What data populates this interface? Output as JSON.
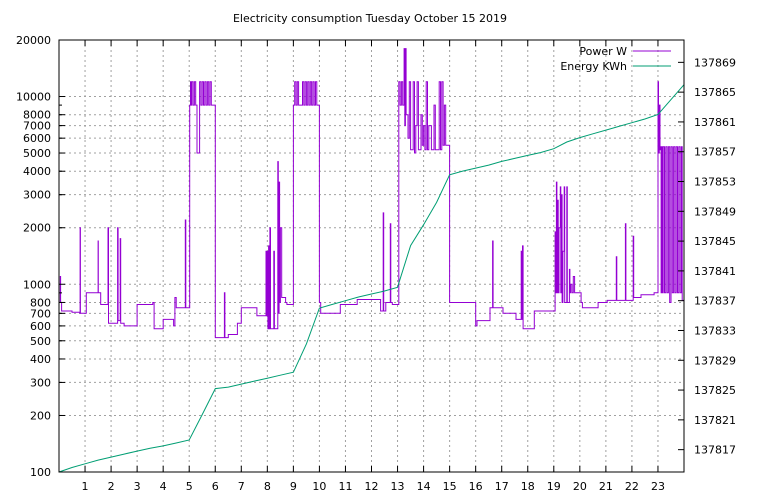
{
  "chart_data": {
    "type": "line",
    "title": "Electricity consumption Tuesday October 15 2019",
    "xlabel": "",
    "ylabel": "",
    "y2label": "",
    "x_range": [
      0,
      24
    ],
    "x_ticks": [
      "1",
      "2",
      "3",
      "4",
      "5",
      "6",
      "7",
      "8",
      "9",
      "10",
      "11",
      "12",
      "13",
      "14",
      "15",
      "16",
      "17",
      "18",
      "19",
      "20",
      "21",
      "22",
      "23"
    ],
    "y_scale": "log",
    "y_range": [
      100,
      20000
    ],
    "y_ticks": [
      "100",
      "200",
      "300",
      "400",
      "500",
      "600",
      "700",
      "800",
      "1000",
      "2000",
      "3000",
      "4000",
      "5000",
      "6000",
      "7000",
      "8000",
      "10000",
      "20000"
    ],
    "y2_range": [
      137814,
      137872
    ],
    "y2_ticks": [
      "137817",
      "137821",
      "137825",
      "137829",
      "137833",
      "137837",
      "137841",
      "137845",
      "137849",
      "137853",
      "137857",
      "137861",
      "137865",
      "137869"
    ],
    "grid": true,
    "legend_position": "top-right",
    "series": [
      {
        "name": "Power W",
        "axis": "y",
        "color": "#9400d3",
        "points": [
          [
            0.0,
            800
          ],
          [
            0.04,
            800
          ],
          [
            0.05,
            1100
          ],
          [
            0.06,
            800
          ],
          [
            0.1,
            720
          ],
          [
            0.2,
            720
          ],
          [
            0.5,
            710
          ],
          [
            0.8,
            700
          ],
          [
            0.81,
            2000
          ],
          [
            0.82,
            700
          ],
          [
            1.0,
            700
          ],
          [
            1.05,
            900
          ],
          [
            1.45,
            900
          ],
          [
            1.5,
            1700
          ],
          [
            1.51,
            900
          ],
          [
            1.6,
            780
          ],
          [
            1.85,
            780
          ],
          [
            1.88,
            2000
          ],
          [
            1.9,
            620
          ],
          [
            2.2,
            620
          ],
          [
            2.25,
            2000
          ],
          [
            2.27,
            640
          ],
          [
            2.35,
            1750
          ],
          [
            2.37,
            620
          ],
          [
            2.5,
            600
          ],
          [
            2.95,
            600
          ],
          [
            3.0,
            780
          ],
          [
            3.55,
            780
          ],
          [
            3.6,
            800
          ],
          [
            3.65,
            580
          ],
          [
            3.9,
            580
          ],
          [
            4.0,
            650
          ],
          [
            4.35,
            650
          ],
          [
            4.4,
            600
          ],
          [
            4.45,
            850
          ],
          [
            4.5,
            750
          ],
          [
            4.8,
            750
          ],
          [
            4.85,
            2200
          ],
          [
            4.87,
            750
          ],
          [
            5.0,
            750
          ],
          [
            5.02,
            9000
          ],
          [
            5.05,
            12000
          ],
          [
            5.08,
            9000
          ],
          [
            5.1,
            12000
          ],
          [
            5.15,
            9000
          ],
          [
            5.2,
            12000
          ],
          [
            5.25,
            9000
          ],
          [
            5.3,
            5000
          ],
          [
            5.35,
            5000
          ],
          [
            5.4,
            12000
          ],
          [
            5.45,
            9000
          ],
          [
            5.5,
            12000
          ],
          [
            5.55,
            9000
          ],
          [
            5.6,
            12000
          ],
          [
            5.65,
            9000
          ],
          [
            5.7,
            12000
          ],
          [
            5.75,
            9000
          ],
          [
            5.8,
            12000
          ],
          [
            5.85,
            9000
          ],
          [
            5.95,
            9000
          ],
          [
            6.0,
            520
          ],
          [
            6.3,
            520
          ],
          [
            6.35,
            900
          ],
          [
            6.37,
            520
          ],
          [
            6.5,
            540
          ],
          [
            6.8,
            540
          ],
          [
            6.85,
            620
          ],
          [
            6.95,
            620
          ],
          [
            7.0,
            750
          ],
          [
            7.55,
            750
          ],
          [
            7.6,
            680
          ],
          [
            7.9,
            680
          ],
          [
            7.95,
            1500
          ],
          [
            7.97,
            680
          ],
          [
            8.0,
            1500
          ],
          [
            8.02,
            580
          ],
          [
            8.05,
            1600
          ],
          [
            8.07,
            580
          ],
          [
            8.1,
            2000
          ],
          [
            8.12,
            580
          ],
          [
            8.25,
            1500
          ],
          [
            8.27,
            580
          ],
          [
            8.4,
            4500
          ],
          [
            8.42,
            700
          ],
          [
            8.45,
            3500
          ],
          [
            8.47,
            800
          ],
          [
            8.5,
            2000
          ],
          [
            8.55,
            850
          ],
          [
            8.7,
            800
          ],
          [
            8.75,
            780
          ],
          [
            8.95,
            780
          ],
          [
            9.0,
            9000
          ],
          [
            9.05,
            12000
          ],
          [
            9.1,
            9000
          ],
          [
            9.15,
            12000
          ],
          [
            9.2,
            9000
          ],
          [
            9.3,
            9000
          ],
          [
            9.35,
            12000
          ],
          [
            9.4,
            9000
          ],
          [
            9.45,
            12000
          ],
          [
            9.5,
            9000
          ],
          [
            9.55,
            12000
          ],
          [
            9.6,
            9000
          ],
          [
            9.65,
            12000
          ],
          [
            9.7,
            9000
          ],
          [
            9.75,
            12000
          ],
          [
            9.8,
            9000
          ],
          [
            9.85,
            12000
          ],
          [
            9.9,
            9000
          ],
          [
            10.0,
            800
          ],
          [
            10.05,
            700
          ],
          [
            10.75,
            700
          ],
          [
            10.8,
            780
          ],
          [
            11.4,
            780
          ],
          [
            11.45,
            830
          ],
          [
            12.3,
            830
          ],
          [
            12.35,
            720
          ],
          [
            12.4,
            720
          ],
          [
            12.45,
            2400
          ],
          [
            12.47,
            720
          ],
          [
            12.55,
            800
          ],
          [
            12.7,
            800
          ],
          [
            12.72,
            2100
          ],
          [
            12.74,
            800
          ],
          [
            12.8,
            780
          ],
          [
            13.0,
            780
          ],
          [
            13.05,
            12000
          ],
          [
            13.1,
            9000
          ],
          [
            13.15,
            12000
          ],
          [
            13.2,
            9000
          ],
          [
            13.25,
            18000
          ],
          [
            13.28,
            7000
          ],
          [
            13.3,
            18000
          ],
          [
            13.33,
            8000
          ],
          [
            13.4,
            6000
          ],
          [
            13.45,
            12000
          ],
          [
            13.5,
            5200
          ],
          [
            13.6,
            12000
          ],
          [
            13.65,
            5000
          ],
          [
            13.7,
            7000
          ],
          [
            13.75,
            12000
          ],
          [
            13.8,
            5200
          ],
          [
            13.9,
            8000
          ],
          [
            13.95,
            5500
          ],
          [
            14.0,
            7000
          ],
          [
            14.05,
            5200
          ],
          [
            14.1,
            12000
          ],
          [
            14.15,
            5200
          ],
          [
            14.2,
            7000
          ],
          [
            14.3,
            5200
          ],
          [
            14.4,
            9000
          ],
          [
            14.45,
            5200
          ],
          [
            14.6,
            12000
          ],
          [
            14.65,
            5200
          ],
          [
            14.7,
            12000
          ],
          [
            14.75,
            5500
          ],
          [
            14.8,
            9000
          ],
          [
            14.85,
            5500
          ],
          [
            14.9,
            5500
          ],
          [
            15.0,
            800
          ],
          [
            15.95,
            800
          ],
          [
            16.0,
            600
          ],
          [
            16.05,
            640
          ],
          [
            16.5,
            640
          ],
          [
            16.55,
            750
          ],
          [
            16.65,
            1700
          ],
          [
            16.67,
            750
          ],
          [
            16.9,
            750
          ],
          [
            17.0,
            750
          ],
          [
            17.05,
            700
          ],
          [
            17.5,
            700
          ],
          [
            17.55,
            650
          ],
          [
            17.7,
            650
          ],
          [
            17.75,
            1500
          ],
          [
            17.77,
            650
          ],
          [
            17.8,
            1600
          ],
          [
            17.82,
            580
          ],
          [
            18.2,
            580
          ],
          [
            18.25,
            720
          ],
          [
            19.0,
            720
          ],
          [
            19.05,
            1900
          ],
          [
            19.07,
            900
          ],
          [
            19.1,
            3500
          ],
          [
            19.12,
            900
          ],
          [
            19.15,
            2800
          ],
          [
            19.17,
            900
          ],
          [
            19.2,
            2000
          ],
          [
            19.25,
            3300
          ],
          [
            19.27,
            900
          ],
          [
            19.3,
            3000
          ],
          [
            19.32,
            800
          ],
          [
            19.35,
            1500
          ],
          [
            19.4,
            3300
          ],
          [
            19.42,
            800
          ],
          [
            19.5,
            3300
          ],
          [
            19.52,
            800
          ],
          [
            19.6,
            1200
          ],
          [
            19.62,
            900
          ],
          [
            19.65,
            1000
          ],
          [
            19.7,
            900
          ],
          [
            19.75,
            1100
          ],
          [
            19.8,
            900
          ],
          [
            19.85,
            900
          ],
          [
            20.0,
            900
          ],
          [
            20.05,
            800
          ],
          [
            20.1,
            750
          ],
          [
            20.65,
            750
          ],
          [
            20.7,
            800
          ],
          [
            21.0,
            800
          ],
          [
            21.05,
            820
          ],
          [
            21.35,
            820
          ],
          [
            21.4,
            1400
          ],
          [
            21.42,
            820
          ],
          [
            21.7,
            820
          ],
          [
            21.75,
            2100
          ],
          [
            21.77,
            820
          ],
          [
            22.0,
            820
          ],
          [
            22.05,
            1800
          ],
          [
            22.07,
            850
          ],
          [
            22.3,
            850
          ],
          [
            22.35,
            880
          ],
          [
            22.8,
            880
          ],
          [
            22.85,
            900
          ],
          [
            22.95,
            900
          ],
          [
            23.0,
            12000
          ],
          [
            23.02,
            5000
          ],
          [
            23.05,
            9000
          ],
          [
            23.08,
            5200
          ],
          [
            23.1,
            5400
          ],
          [
            23.12,
            900
          ],
          [
            23.15,
            5400
          ],
          [
            23.18,
            900
          ],
          [
            23.2,
            5400
          ],
          [
            23.25,
            900
          ],
          [
            23.3,
            5400
          ],
          [
            23.35,
            900
          ],
          [
            23.4,
            5400
          ],
          [
            23.45,
            800
          ],
          [
            23.5,
            5400
          ],
          [
            23.55,
            900
          ],
          [
            23.6,
            5400
          ],
          [
            23.65,
            900
          ],
          [
            23.7,
            5400
          ],
          [
            23.75,
            900
          ],
          [
            23.8,
            5400
          ],
          [
            23.85,
            900
          ],
          [
            23.9,
            5400
          ],
          [
            23.93,
            820
          ],
          [
            24.0,
            820
          ]
        ]
      },
      {
        "name": "Energy KWh",
        "axis": "y2",
        "color": "#009e73",
        "points": [
          [
            0.0,
            137814.0
          ],
          [
            0.5,
            137814.6
          ],
          [
            1.0,
            137815.1
          ],
          [
            1.5,
            137815.6
          ],
          [
            2.0,
            137816.0
          ],
          [
            2.5,
            137816.4
          ],
          [
            3.0,
            137816.8
          ],
          [
            3.5,
            137817.2
          ],
          [
            4.0,
            137817.5
          ],
          [
            4.5,
            137817.9
          ],
          [
            5.0,
            137818.3
          ],
          [
            5.5,
            137821.7
          ],
          [
            6.0,
            137825.2
          ],
          [
            6.5,
            137825.4
          ],
          [
            7.0,
            137825.8
          ],
          [
            7.5,
            137826.2
          ],
          [
            8.0,
            137826.6
          ],
          [
            8.5,
            137827.0
          ],
          [
            9.0,
            137827.4
          ],
          [
            9.5,
            137831.2
          ],
          [
            10.0,
            137836.0
          ],
          [
            10.5,
            137836.5
          ],
          [
            11.0,
            137837.0
          ],
          [
            11.5,
            137837.5
          ],
          [
            12.0,
            137837.9
          ],
          [
            12.5,
            137838.3
          ],
          [
            13.0,
            137838.8
          ],
          [
            13.5,
            137844.4
          ],
          [
            14.0,
            137847.2
          ],
          [
            14.5,
            137850.2
          ],
          [
            15.0,
            137853.9
          ],
          [
            15.5,
            137854.4
          ],
          [
            16.0,
            137854.8
          ],
          [
            16.5,
            137855.2
          ],
          [
            17.0,
            137855.7
          ],
          [
            17.5,
            137856.1
          ],
          [
            18.0,
            137856.5
          ],
          [
            18.5,
            137856.9
          ],
          [
            19.0,
            137857.4
          ],
          [
            19.5,
            137858.3
          ],
          [
            20.0,
            137858.9
          ],
          [
            20.5,
            137859.4
          ],
          [
            21.0,
            137859.9
          ],
          [
            21.5,
            137860.4
          ],
          [
            22.0,
            137860.9
          ],
          [
            22.5,
            137861.4
          ],
          [
            23.0,
            137862.0
          ],
          [
            23.5,
            137864.0
          ],
          [
            24.0,
            137866.0
          ]
        ]
      }
    ]
  }
}
